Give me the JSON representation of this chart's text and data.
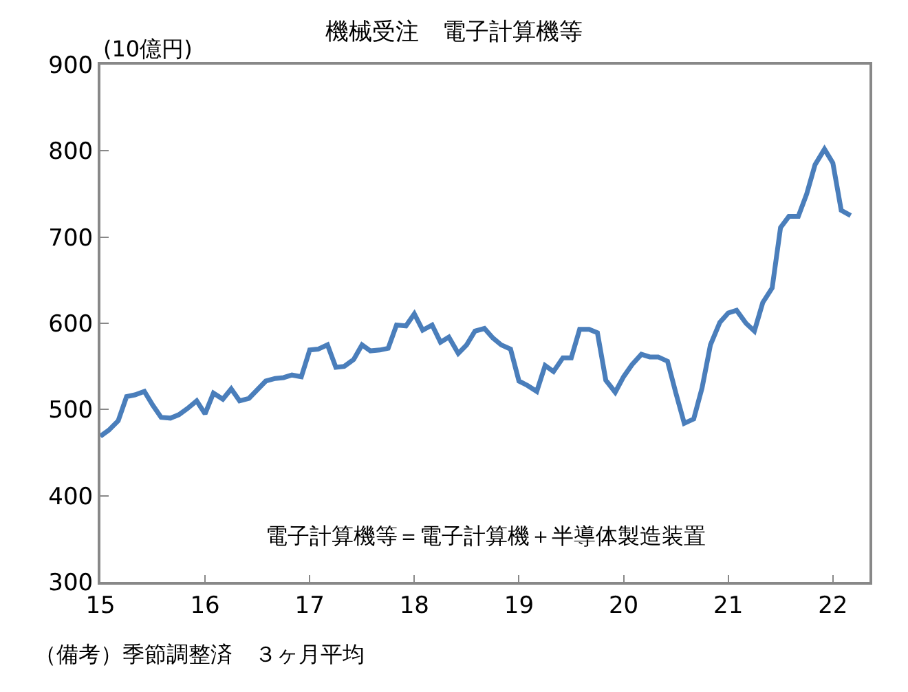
{
  "chart_data": {
    "type": "line",
    "title": "機械受注　電子計算機等",
    "ylabel": "(10億円)",
    "annotations": [
      "電子計算機等＝電子計算機＋半導体製造装置",
      "（備考）季節調整済　３ヶ月平均"
    ],
    "x": [
      15.0,
      15.08,
      15.17,
      15.25,
      15.33,
      15.42,
      15.5,
      15.58,
      15.67,
      15.75,
      15.83,
      15.92,
      16.0,
      16.08,
      16.17,
      16.25,
      16.33,
      16.42,
      16.5,
      16.58,
      16.67,
      16.75,
      16.83,
      16.92,
      17.0,
      17.08,
      17.17,
      17.25,
      17.33,
      17.42,
      17.5,
      17.58,
      17.67,
      17.75,
      17.83,
      17.92,
      18.0,
      18.08,
      18.17,
      18.25,
      18.33,
      18.42,
      18.5,
      18.58,
      18.67,
      18.75,
      18.83,
      18.92,
      19.0,
      19.08,
      19.17,
      19.25,
      19.33,
      19.42,
      19.5,
      19.58,
      19.67,
      19.75,
      19.83,
      19.92,
      20.0,
      20.08,
      20.17,
      20.25,
      20.33,
      20.42,
      20.5,
      20.58,
      20.67,
      20.75,
      20.83,
      20.92,
      21.0,
      21.08,
      21.17,
      21.25,
      21.33,
      21.42,
      21.5,
      21.58,
      21.67,
      21.75,
      21.83,
      21.92,
      22.0,
      22.08,
      22.17
    ],
    "series": [
      {
        "color": "#4a7ebb",
        "values": [
          469,
          476,
          487,
          515,
          517,
          521,
          505,
          491,
          490,
          494,
          501,
          510,
          495,
          519,
          512,
          524,
          510,
          513,
          523,
          533,
          536,
          537,
          540,
          538,
          569,
          570,
          575,
          549,
          550,
          558,
          575,
          568,
          569,
          571,
          598,
          597,
          611,
          592,
          598,
          578,
          584,
          565,
          575,
          591,
          594,
          583,
          575,
          570,
          533,
          528,
          521,
          551,
          544,
          560,
          560,
          593,
          593,
          589,
          534,
          520,
          538,
          552,
          564,
          561,
          561,
          556,
          519,
          484,
          489,
          525,
          575,
          601,
          612,
          615,
          600,
          591,
          624,
          641,
          711,
          724,
          724,
          750,
          784,
          802,
          786,
          731,
          725
        ]
      }
    ],
    "xlim": [
      15,
      22.35
    ],
    "xticks": [
      15,
      16,
      17,
      18,
      19,
      20,
      21,
      22
    ],
    "ylim": [
      300,
      900
    ],
    "yticks": [
      300,
      400,
      500,
      600,
      700,
      800,
      900
    ],
    "grid": false,
    "marker": "none",
    "line_style": "solid"
  }
}
